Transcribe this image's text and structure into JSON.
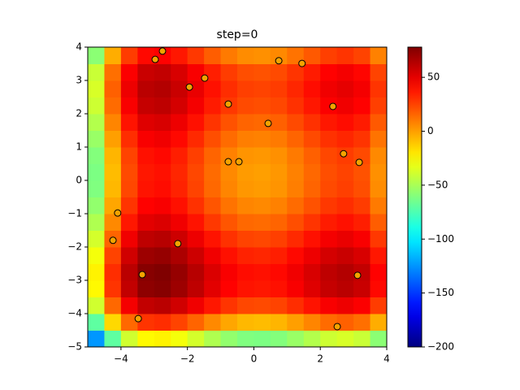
{
  "chart_data": {
    "type": "heatmap-scatter",
    "title": "step=0",
    "colormap": "jet",
    "xbins": [
      -5,
      -4.5,
      -4,
      -3.5,
      -3,
      -2.5,
      -2,
      -1.5,
      -1,
      -0.5,
      0,
      0.5,
      1,
      1.5,
      2,
      2.5,
      3,
      3.5,
      4
    ],
    "ybins": [
      -5,
      -4.5,
      -4,
      -3.5,
      -3,
      -2.5,
      -2,
      -1.5,
      -1,
      -0.5,
      0,
      0.5,
      1,
      1.5,
      2,
      2.5,
      3,
      3.5,
      4
    ],
    "z": [
      [
        -124,
        -70,
        -39,
        -25,
        -23,
        -29,
        -38,
        -48,
        -56,
        -61,
        -62,
        -60,
        -54,
        -47,
        -40,
        -37,
        -41,
        -58
      ],
      [
        -70,
        -16,
        15,
        29,
        31,
        25,
        16,
        6,
        -2,
        -7,
        -8,
        -6,
        0,
        7,
        14,
        17,
        13,
        -4
      ],
      [
        -39,
        15,
        46,
        60,
        62,
        56,
        47,
        37,
        29,
        24,
        23,
        25,
        31,
        38,
        45,
        48,
        44,
        27
      ],
      [
        -25,
        29,
        60,
        74,
        76,
        70,
        61,
        51,
        43,
        38,
        37,
        39,
        45,
        52,
        59,
        62,
        58,
        41
      ],
      [
        -23,
        31,
        62,
        76,
        78,
        72,
        63,
        53,
        45,
        40,
        39,
        41,
        47,
        54,
        61,
        64,
        60,
        43
      ],
      [
        -29,
        25,
        56,
        70,
        72,
        66,
        57,
        47,
        39,
        34,
        33,
        35,
        41,
        48,
        55,
        58,
        54,
        37
      ],
      [
        -38,
        16,
        47,
        61,
        63,
        57,
        48,
        38,
        30,
        25,
        24,
        26,
        32,
        39,
        46,
        49,
        45,
        28
      ],
      [
        -48,
        6,
        37,
        51,
        53,
        47,
        38,
        28,
        20,
        15,
        14,
        16,
        22,
        29,
        36,
        39,
        35,
        18
      ],
      [
        -56,
        -2,
        29,
        43,
        45,
        39,
        30,
        20,
        12,
        7,
        6,
        8,
        14,
        21,
        28,
        31,
        27,
        10
      ],
      [
        -61,
        -7,
        24,
        38,
        40,
        34,
        25,
        15,
        7,
        2,
        1,
        3,
        9,
        16,
        23,
        26,
        22,
        5
      ],
      [
        -62,
        -8,
        23,
        37,
        39,
        33,
        24,
        14,
        6,
        1,
        0,
        2,
        8,
        15,
        22,
        25,
        21,
        4
      ],
      [
        -60,
        -6,
        25,
        39,
        41,
        35,
        26,
        16,
        8,
        3,
        2,
        4,
        10,
        17,
        24,
        27,
        23,
        6
      ],
      [
        -54,
        0,
        31,
        45,
        47,
        41,
        32,
        22,
        14,
        9,
        8,
        10,
        16,
        23,
        30,
        33,
        29,
        12
      ],
      [
        -47,
        7,
        38,
        52,
        54,
        48,
        39,
        29,
        21,
        16,
        15,
        17,
        23,
        30,
        37,
        40,
        36,
        19
      ],
      [
        -40,
        14,
        45,
        59,
        61,
        55,
        46,
        36,
        28,
        23,
        22,
        24,
        30,
        37,
        44,
        47,
        43,
        26
      ],
      [
        -37,
        17,
        48,
        62,
        64,
        58,
        49,
        39,
        31,
        26,
        25,
        27,
        33,
        40,
        47,
        50,
        46,
        29
      ],
      [
        -41,
        13,
        44,
        58,
        60,
        54,
        45,
        35,
        27,
        22,
        21,
        23,
        29,
        36,
        43,
        46,
        42,
        25
      ],
      [
        -58,
        -4,
        27,
        41,
        43,
        37,
        28,
        18,
        10,
        5,
        4,
        6,
        12,
        19,
        26,
        29,
        25,
        8
      ]
    ],
    "clim": [
      -200,
      78
    ],
    "points": {
      "color": "#f5a300",
      "edgecolor": "#000000",
      "x": [
        -2.75,
        -2.97,
        -1.94,
        -1.48,
        0.75,
        1.45,
        -0.77,
        0.43,
        2.38,
        2.7,
        3.17,
        -0.77,
        -0.45,
        -4.1,
        -4.24,
        -2.29,
        -3.36,
        3.12,
        -3.48,
        2.51
      ],
      "y": [
        3.88,
        3.63,
        2.8,
        3.07,
        3.59,
        3.51,
        2.29,
        1.71,
        2.22,
        0.8,
        0.54,
        0.56,
        0.56,
        -0.98,
        -1.8,
        -1.9,
        -2.83,
        -2.85,
        -4.15,
        -4.39
      ]
    },
    "xlim": [
      -5,
      4
    ],
    "ylim": [
      -5,
      4
    ],
    "xticks": [
      {
        "value": -4,
        "label": "−4"
      },
      {
        "value": -2,
        "label": "−2"
      },
      0,
      2,
      4
    ],
    "yticks": [
      {
        "value": -5,
        "label": "−5"
      },
      {
        "value": -4,
        "label": "−4"
      },
      {
        "value": -3,
        "label": "−3"
      },
      {
        "value": -2,
        "label": "−2"
      },
      {
        "value": -1,
        "label": "−1"
      },
      0,
      1,
      2,
      3,
      4
    ],
    "cticks": [
      {
        "value": -200,
        "label": "−200"
      },
      {
        "value": -150,
        "label": "−150"
      },
      {
        "value": -100,
        "label": "−100"
      },
      {
        "value": -50,
        "label": "−50"
      },
      0,
      50
    ]
  }
}
